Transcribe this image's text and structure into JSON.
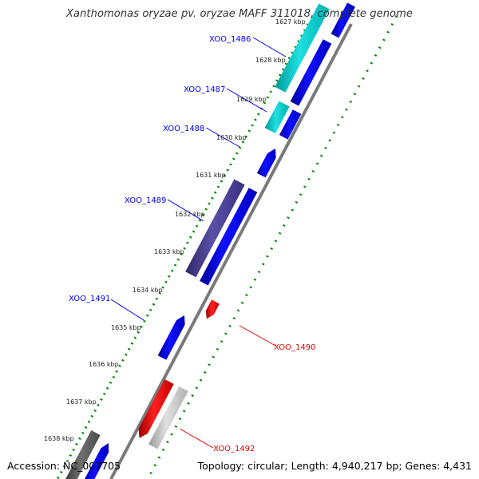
{
  "title": "Xanthomonas oryzae pv. oryzae MAFF 311018, complete genome",
  "footer": {
    "accession": "Accession: NC_007705",
    "summary": "Topology: circular; Length: 4,940,217 bp; Genes: 4,431"
  },
  "colors": {
    "plus_strand": "#0000ee",
    "minus_strand": "#0000ee",
    "cyan_gene": "#00c8c8",
    "slate_gene": "#4a3f8c",
    "red_gene": "#e00000",
    "gray_gene": "#c0c0c0",
    "dark_gray_gene": "#555555",
    "backbone": "#808080",
    "tick_inner": "#008800",
    "tick_outer": "#008800"
  },
  "scale_labels": [
    "1627 kbp",
    "1628 kbp",
    "1629 kbp",
    "1630 kbp",
    "1631 kbp",
    "1632 kbp",
    "1633 kbp",
    "1634 kbp",
    "1635 kbp",
    "1636 kbp",
    "1637 kbp",
    "1638 kbp"
  ],
  "gene_labels": {
    "xoo_1486": "XOO_1486",
    "xoo_1487": "XOO_1487",
    "xoo_1488": "XOO_1488",
    "xoo_1489": "XOO_1489",
    "xoo_1490": "XOO_1490",
    "xoo_1491": "XOO_1491",
    "xoo_1492": "XOO_1492"
  }
}
